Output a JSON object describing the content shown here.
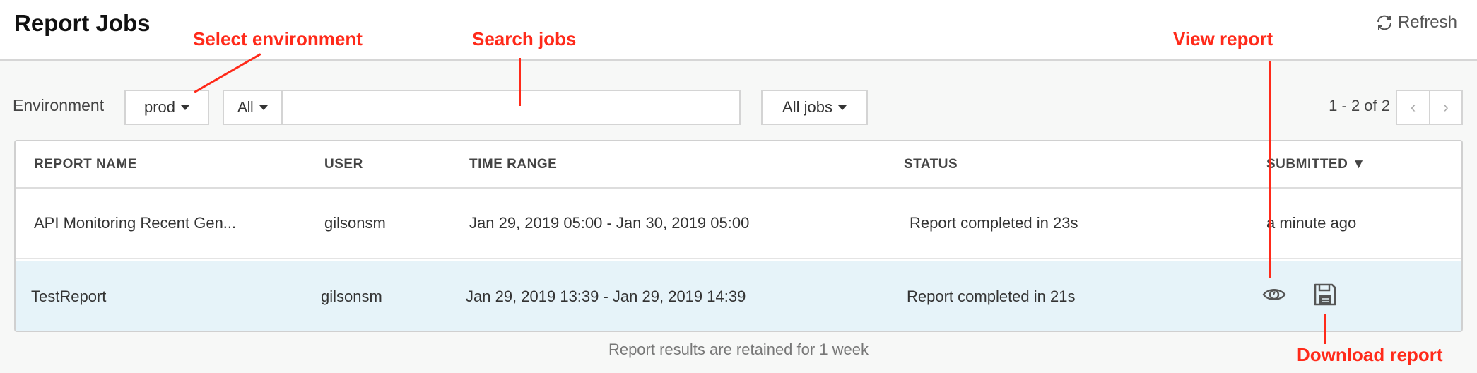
{
  "header": {
    "title": "Report Jobs",
    "refresh_label": "Refresh"
  },
  "toolbar": {
    "environment_label": "Environment",
    "environment_value": "prod",
    "search_scope": "All",
    "search_value": "",
    "search_placeholder": "",
    "job_filter": "All jobs",
    "pagination": "1 - 2 of 2"
  },
  "table": {
    "columns": [
      "REPORT NAME",
      "USER",
      "TIME RANGE",
      "STATUS",
      "SUBMITTED"
    ],
    "sort_indicator": "▼",
    "rows": [
      {
        "name": "API Monitoring Recent Gen...",
        "user": "gilsonsm",
        "time_range": "Jan 29, 2019 05:00 - Jan 30, 2019 05:00",
        "status": "Report completed in 23s",
        "submitted": "a minute ago"
      },
      {
        "name": "TestReport",
        "user": "gilsonsm",
        "time_range": "Jan 29, 2019 13:39 - Jan 29, 2019 14:39",
        "status": "Report completed in 21s",
        "submitted": ""
      }
    ]
  },
  "footer": "Report results are retained for 1 week",
  "annotations": {
    "select_env": "Select environment",
    "search_jobs": "Search jobs",
    "view_report": "View report",
    "download_report": "Download report"
  },
  "colors": {
    "annotation": "#ff2a1a",
    "selected_row": "#e6f3f9"
  }
}
